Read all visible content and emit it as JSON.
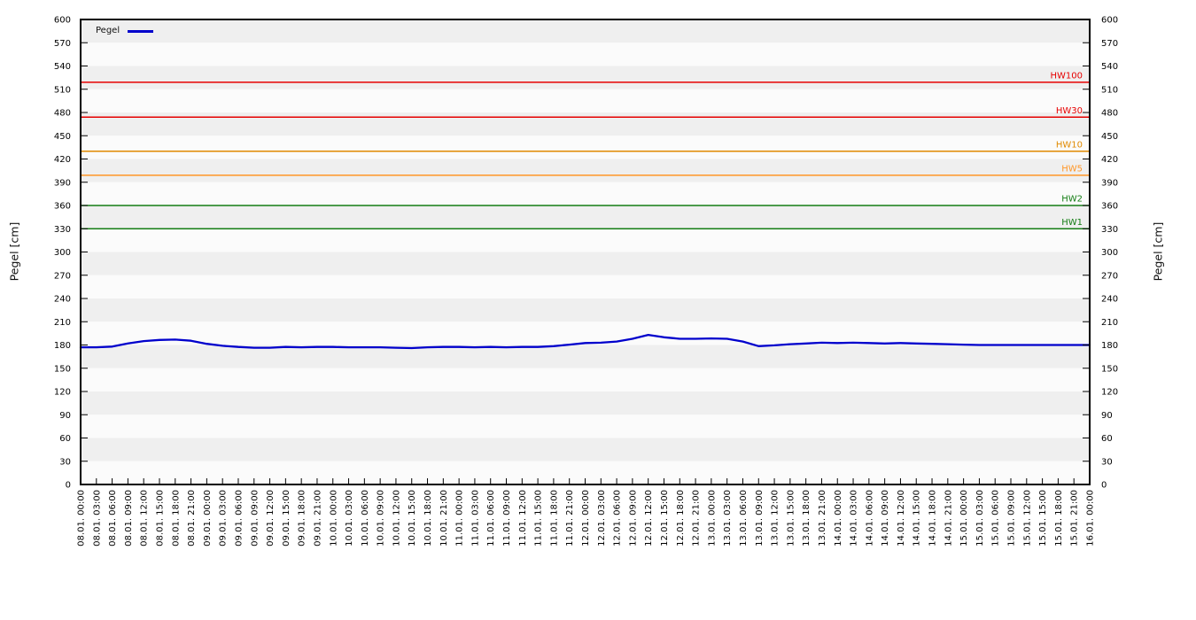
{
  "chart_data": {
    "type": "line",
    "title": "",
    "axes": {
      "y_left_label": "Pegel [cm]",
      "y_right_label": "Pegel [cm]",
      "y_min": 0,
      "y_max": 600,
      "y_tick_step": 30,
      "y_ticks": [
        0,
        30,
        60,
        90,
        120,
        150,
        180,
        210,
        240,
        270,
        300,
        330,
        360,
        390,
        420,
        450,
        480,
        510,
        540,
        570,
        600
      ],
      "x_tick_interval_hours": 3,
      "x_tick_labels": [
        "08.01. 00:00",
        "08.01. 03:00",
        "08.01. 06:00",
        "08.01. 09:00",
        "08.01. 12:00",
        "08.01. 15:00",
        "08.01. 18:00",
        "08.01. 21:00",
        "09.01. 00:00",
        "09.01. 03:00",
        "09.01. 06:00",
        "09.01. 09:00",
        "09.01. 12:00",
        "09.01. 15:00",
        "09.01. 18:00",
        "09.01. 21:00",
        "10.01. 00:00",
        "10.01. 03:00",
        "10.01. 06:00",
        "10.01. 09:00",
        "10.01. 12:00",
        "10.01. 15:00",
        "10.01. 18:00",
        "10.01. 21:00",
        "11.01. 00:00",
        "11.01. 03:00",
        "11.01. 06:00",
        "11.01. 09:00",
        "11.01. 12:00",
        "11.01. 15:00",
        "11.01. 18:00",
        "11.01. 21:00",
        "12.01. 00:00",
        "12.01. 03:00",
        "12.01. 06:00",
        "12.01. 09:00",
        "12.01. 12:00",
        "12.01. 15:00",
        "12.01. 18:00",
        "12.01. 21:00",
        "13.01. 00:00",
        "13.01. 03:00",
        "13.01. 06:00",
        "13.01. 09:00",
        "13.01. 12:00",
        "13.01. 15:00",
        "13.01. 18:00",
        "13.01. 21:00",
        "14.01. 00:00",
        "14.01. 03:00",
        "14.01. 06:00",
        "14.01. 09:00",
        "14.01. 12:00",
        "14.01. 15:00",
        "14.01. 18:00",
        "14.01. 21:00",
        "15.01. 00:00",
        "15.01. 03:00",
        "15.01. 06:00",
        "15.01. 09:00",
        "15.01. 12:00",
        "15.01. 15:00",
        "15.01. 18:00",
        "15.01. 21:00",
        "16.01. 00:00"
      ],
      "grid": "horizontal-bands",
      "legend_position": "top-left"
    },
    "legend": {
      "entries": [
        {
          "label": "Pegel",
          "color": "#0000cc"
        }
      ]
    },
    "series": [
      {
        "name": "Pegel",
        "color": "#0000cc",
        "values": [
          177,
          177,
          178,
          182,
          185,
          186.5,
          187,
          185.5,
          181.5,
          179,
          177.5,
          176.5,
          176.5,
          177.5,
          177,
          177.5,
          177.5,
          177,
          177,
          177,
          176.5,
          176,
          177,
          177.5,
          177.5,
          177,
          177.5,
          177,
          177.5,
          177.5,
          178.5,
          180.5,
          182.5,
          183,
          184.5,
          188,
          193,
          190,
          188,
          188,
          188.5,
          188,
          184.5,
          178.5,
          179.5,
          181,
          182,
          183,
          182.5,
          183,
          182.5,
          182,
          182.5,
          182,
          181.5,
          181,
          180.5,
          180,
          180,
          180,
          180,
          180,
          180,
          180,
          180
        ]
      }
    ],
    "thresholds": [
      {
        "label": "HW100",
        "value": 519,
        "color": "#e60000"
      },
      {
        "label": "HW30",
        "value": 474,
        "color": "#e60000"
      },
      {
        "label": "HW10",
        "value": 430,
        "color": "#e08a00"
      },
      {
        "label": "HW5",
        "value": 399,
        "color": "#ff9626"
      },
      {
        "label": "HW2",
        "value": 360,
        "color": "#147d14"
      },
      {
        "label": "HW1",
        "value": 330,
        "color": "#147d14"
      }
    ],
    "style": {
      "band_color_dark": "#efefef",
      "band_color_light": "#fbfbfb",
      "border_color": "#000000",
      "tick_text_color": "#000000"
    }
  }
}
